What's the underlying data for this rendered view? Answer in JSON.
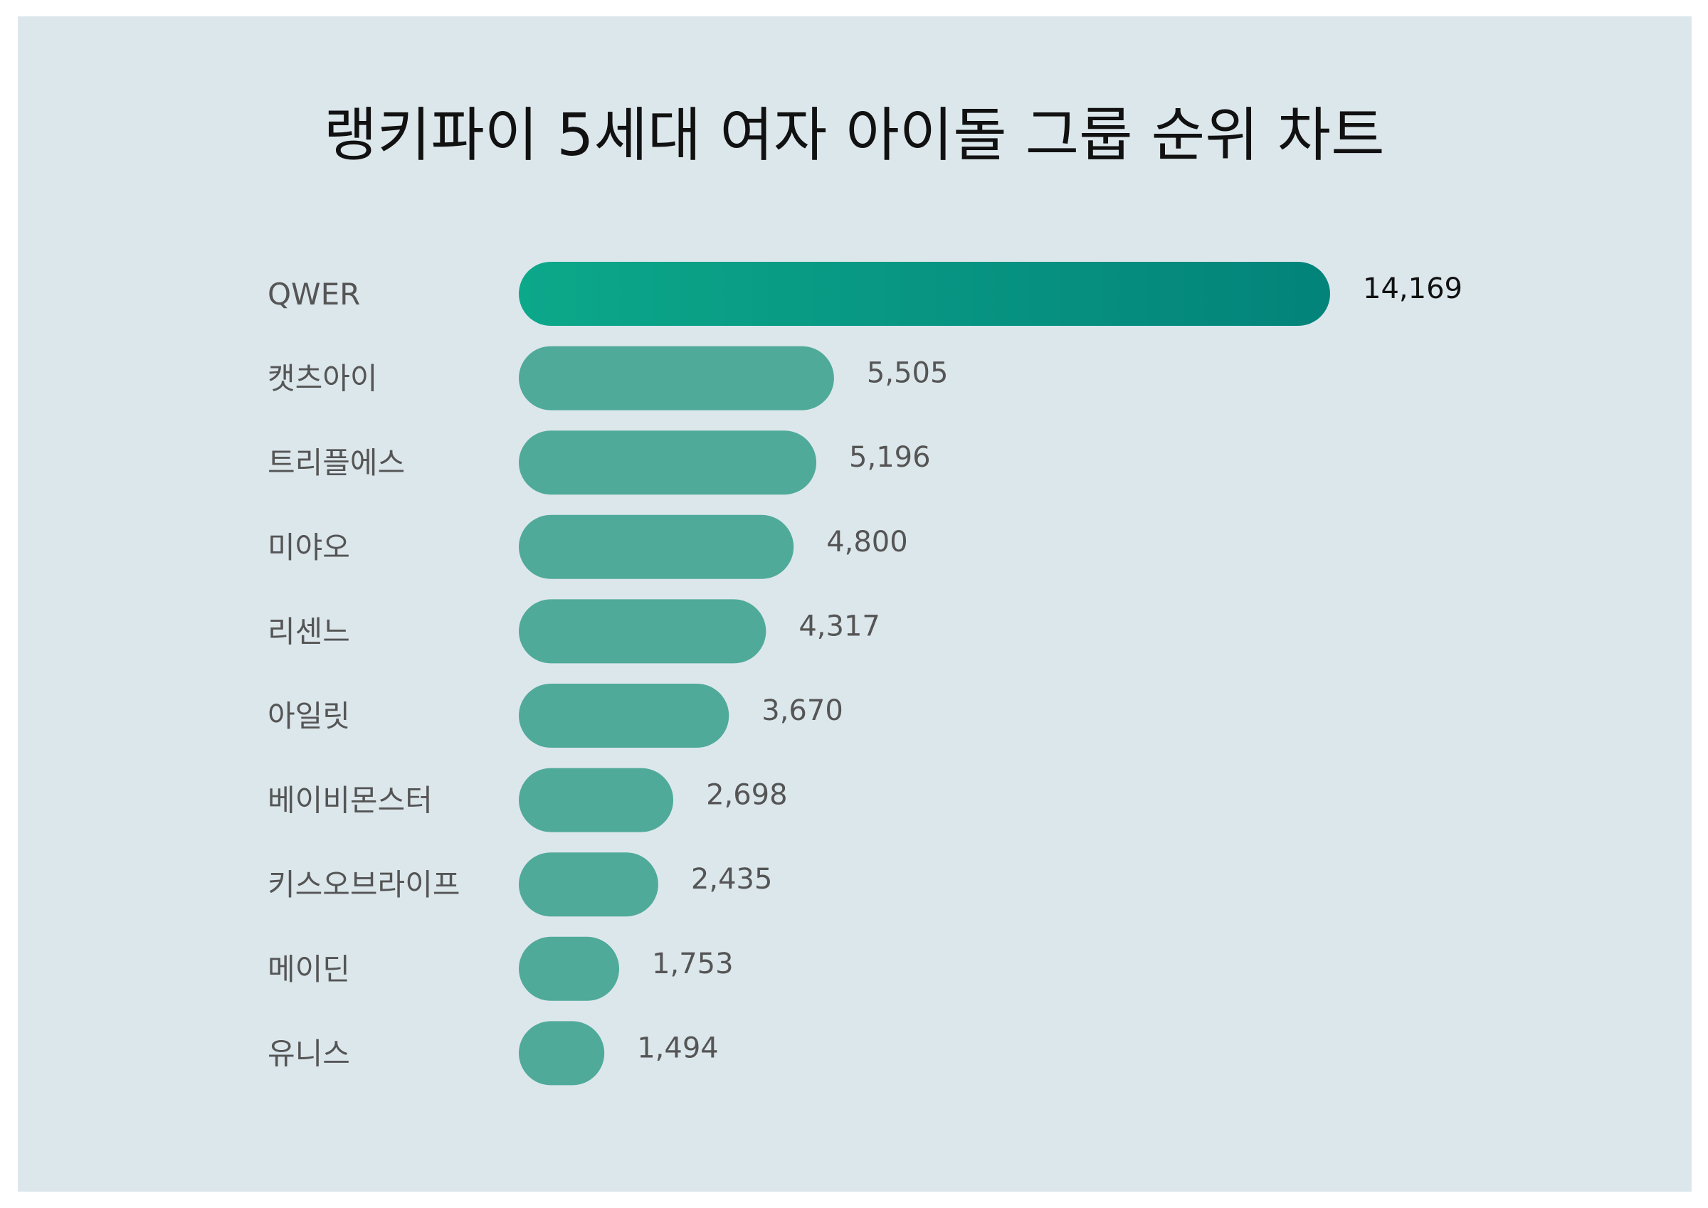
{
  "chart_data": {
    "type": "bar",
    "orientation": "horizontal",
    "title": "랭키파이 5세대 여자 아이돌 그룹 순위 차트",
    "categories": [
      "QWER",
      "캣츠아이",
      "트리플에스",
      "미야오",
      "리센느",
      "아일릿",
      "베이비몬스터",
      "키스오브라이프",
      "메이딘",
      "유니스"
    ],
    "values": [
      14169,
      5505,
      5196,
      4800,
      4317,
      3670,
      2698,
      2435,
      1753,
      1494
    ],
    "value_labels": [
      "14,169",
      "5,505",
      "5,196",
      "4,800",
      "4,317",
      "3,670",
      "2,698",
      "2,435",
      "1,753",
      "1,494"
    ],
    "xlim": [
      0,
      14169
    ],
    "grid": false,
    "legend": "none",
    "colors": {
      "top_bar_start": "#0ca88a",
      "top_bar_end": "#03837a",
      "bar": "#50aa99",
      "background": "#dce7ec",
      "label": "#555555",
      "title": "#111111"
    }
  }
}
